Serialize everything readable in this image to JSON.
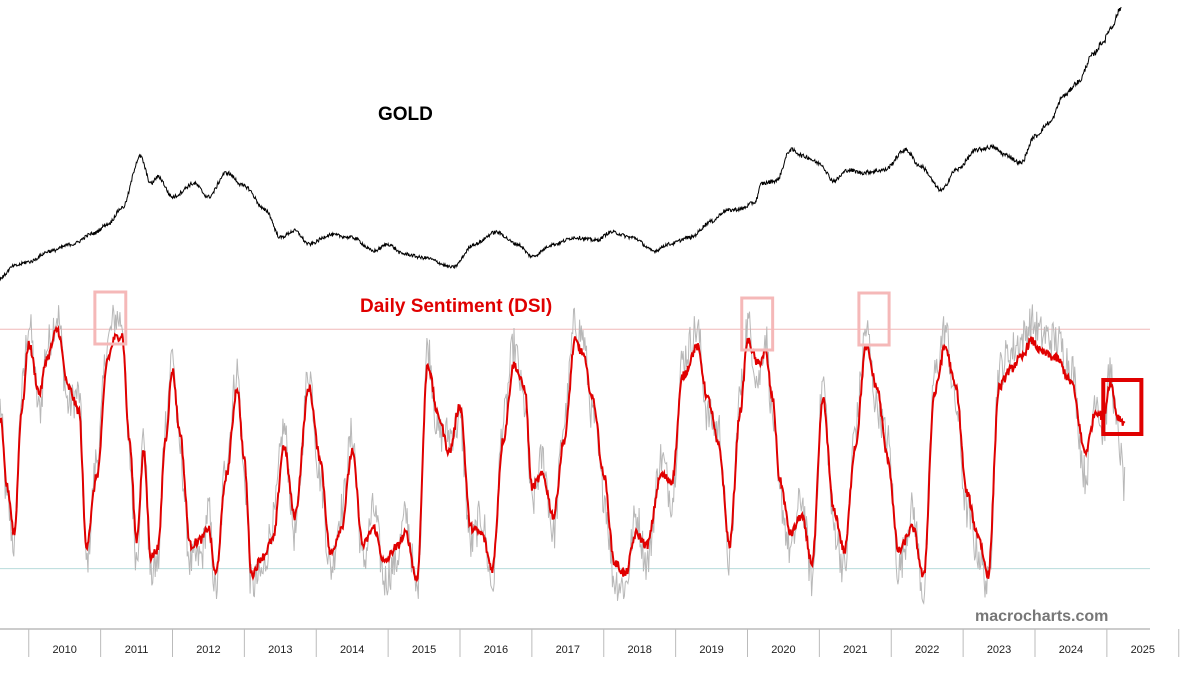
{
  "colors": {
    "gold_line": "#000000",
    "dsi_raw": "#b8b8b8",
    "dsi_smoothed": "#e00000",
    "upper_band": "#f0b8b8",
    "lower_band": "#b8dcdc",
    "highlight_faint": "#f5b8b8",
    "highlight_strong": "#e00000",
    "brand": "#777777"
  },
  "chart_data": [
    {
      "type": "line",
      "title": "GOLD",
      "series": [
        {
          "name": "GOLD",
          "x": [
            2009.6,
            2009.8,
            2010.0,
            2010.3,
            2010.6,
            2010.9,
            2011.1,
            2011.3,
            2011.55,
            2011.7,
            2011.8,
            2012.0,
            2012.3,
            2012.5,
            2012.75,
            2013.0,
            2013.3,
            2013.5,
            2013.7,
            2013.9,
            2014.2,
            2014.5,
            2014.8,
            2015.0,
            2015.2,
            2015.5,
            2015.9,
            2016.2,
            2016.5,
            2016.8,
            2017.0,
            2017.3,
            2017.6,
            2017.9,
            2018.1,
            2018.4,
            2018.7,
            2018.9,
            2019.2,
            2019.5,
            2019.7,
            2019.9,
            2020.1,
            2020.2,
            2020.4,
            2020.6,
            2020.8,
            2021.0,
            2021.2,
            2021.4,
            2021.6,
            2021.9,
            2022.2,
            2022.4,
            2022.7,
            2022.9,
            2023.2,
            2023.4,
            2023.6,
            2023.8,
            2024.0,
            2024.2,
            2024.4,
            2024.6,
            2024.8,
            2024.95,
            2025.05,
            2025.2
          ],
          "values": [
            1000,
            1090,
            1120,
            1200,
            1250,
            1330,
            1400,
            1520,
            1900,
            1700,
            1750,
            1600,
            1700,
            1600,
            1780,
            1680,
            1500,
            1300,
            1350,
            1250,
            1320,
            1300,
            1200,
            1250,
            1180,
            1150,
            1080,
            1250,
            1340,
            1250,
            1160,
            1250,
            1300,
            1280,
            1340,
            1300,
            1200,
            1250,
            1300,
            1420,
            1500,
            1510,
            1560,
            1700,
            1720,
            1950,
            1900,
            1850,
            1720,
            1800,
            1780,
            1800,
            1950,
            1830,
            1650,
            1800,
            1950,
            1970,
            1910,
            1850,
            2050,
            2150,
            2350,
            2450,
            2650,
            2750,
            2850,
            3000
          ]
        }
      ]
    },
    {
      "type": "line",
      "title": "Daily Sentiment (DSI)",
      "xlabel": "",
      "ylabel": "",
      "ylim": [
        0,
        100
      ],
      "categories": [
        "2010",
        "2011",
        "2012",
        "2013",
        "2014",
        "2015",
        "2016",
        "2017",
        "2018",
        "2019",
        "2020",
        "2021",
        "2022",
        "2023",
        "2024",
        "2025"
      ],
      "reference_lines": [
        90,
        8
      ],
      "highlights": [
        {
          "start": 2010.92,
          "end": 2011.35,
          "style": "faint"
        },
        {
          "start": 2019.92,
          "end": 2020.35,
          "style": "faint"
        },
        {
          "start": 2021.55,
          "end": 2021.97,
          "style": "faint"
        },
        {
          "start": 2024.95,
          "end": 2025.48,
          "style": "strong"
        }
      ],
      "series": [
        {
          "name": "DSI (smoothed)",
          "x": [
            2009.6,
            2009.7,
            2009.8,
            2009.9,
            2010.0,
            2010.15,
            2010.25,
            2010.4,
            2010.55,
            2010.7,
            2010.8,
            2010.95,
            2011.1,
            2011.2,
            2011.3,
            2011.4,
            2011.5,
            2011.6,
            2011.7,
            2011.8,
            2011.9,
            2012.0,
            2012.1,
            2012.25,
            2012.4,
            2012.5,
            2012.6,
            2012.75,
            2012.9,
            2013.0,
            2013.1,
            2013.25,
            2013.4,
            2013.55,
            2013.7,
            2013.9,
            2014.05,
            2014.2,
            2014.35,
            2014.5,
            2014.65,
            2014.8,
            2014.95,
            2015.1,
            2015.25,
            2015.4,
            2015.55,
            2015.7,
            2015.85,
            2016.0,
            2016.15,
            2016.3,
            2016.45,
            2016.6,
            2016.75,
            2016.9,
            2017.0,
            2017.15,
            2017.3,
            2017.45,
            2017.6,
            2017.7,
            2017.85,
            2018.0,
            2018.15,
            2018.3,
            2018.45,
            2018.6,
            2018.8,
            2018.95,
            2019.1,
            2019.3,
            2019.45,
            2019.6,
            2019.75,
            2019.9,
            2020.0,
            2020.15,
            2020.25,
            2020.35,
            2020.45,
            2020.6,
            2020.75,
            2020.9,
            2021.05,
            2021.2,
            2021.35,
            2021.5,
            2021.65,
            2021.8,
            2021.95,
            2022.1,
            2022.3,
            2022.45,
            2022.6,
            2022.75,
            2022.9,
            2023.05,
            2023.2,
            2023.35,
            2023.5,
            2023.65,
            2023.8,
            2023.95,
            2024.1,
            2024.3,
            2024.5,
            2024.7,
            2024.85,
            2024.95,
            2025.05,
            2025.15,
            2025.25
          ],
          "values": [
            60,
            36,
            20,
            62,
            85,
            68,
            80,
            90,
            70,
            62,
            16,
            40,
            80,
            87,
            88,
            52,
            18,
            48,
            12,
            15,
            52,
            76,
            55,
            16,
            18,
            22,
            6,
            40,
            70,
            45,
            6,
            12,
            18,
            50,
            26,
            70,
            46,
            13,
            22,
            48,
            16,
            22,
            10,
            15,
            20,
            4,
            78,
            60,
            48,
            64,
            22,
            20,
            8,
            52,
            78,
            70,
            36,
            40,
            26,
            52,
            86,
            82,
            66,
            40,
            10,
            6,
            20,
            16,
            40,
            38,
            74,
            84,
            66,
            50,
            16,
            62,
            86,
            78,
            82,
            66,
            38,
            20,
            26,
            10,
            66,
            28,
            14,
            50,
            84,
            70,
            46,
            14,
            22,
            5,
            68,
            84,
            70,
            34,
            20,
            6,
            70,
            76,
            80,
            86,
            82,
            80,
            72,
            48,
            62,
            60,
            72,
            60,
            58
          ]
        },
        {
          "name": "DSI (raw)",
          "x": [
            2009.6,
            2009.7,
            2009.8,
            2009.9,
            2010.0,
            2010.15,
            2010.25,
            2010.4,
            2010.55,
            2010.7,
            2010.8,
            2010.95,
            2011.1,
            2011.2,
            2011.3,
            2011.4,
            2011.5,
            2011.6,
            2011.7,
            2011.8,
            2011.9,
            2012.0,
            2012.1,
            2012.25,
            2012.4,
            2012.5,
            2012.6,
            2012.75,
            2012.9,
            2013.0,
            2013.1,
            2013.25,
            2013.4,
            2013.55,
            2013.7,
            2013.9,
            2014.05,
            2014.2,
            2014.35,
            2014.5,
            2014.65,
            2014.8,
            2014.95,
            2015.1,
            2015.25,
            2015.4,
            2015.55,
            2015.7,
            2015.85,
            2016.0,
            2016.15,
            2016.3,
            2016.45,
            2016.6,
            2016.75,
            2016.9,
            2017.0,
            2017.15,
            2017.3,
            2017.45,
            2017.6,
            2017.7,
            2017.85,
            2018.0,
            2018.15,
            2018.3,
            2018.45,
            2018.6,
            2018.8,
            2018.95,
            2019.1,
            2019.3,
            2019.45,
            2019.6,
            2019.75,
            2019.9,
            2020.0,
            2020.15,
            2020.25,
            2020.35,
            2020.45,
            2020.6,
            2020.75,
            2020.9,
            2021.05,
            2021.2,
            2021.35,
            2021.5,
            2021.65,
            2021.8,
            2021.95,
            2022.1,
            2022.3,
            2022.45,
            2022.6,
            2022.75,
            2022.9,
            2023.05,
            2023.2,
            2023.35,
            2023.5,
            2023.65,
            2023.8,
            2023.95,
            2024.1,
            2024.3,
            2024.5,
            2024.7,
            2024.85,
            2024.95,
            2025.05,
            2025.15,
            2025.25
          ],
          "values": [
            64,
            30,
            16,
            68,
            92,
            62,
            84,
            95,
            64,
            68,
            10,
            46,
            86,
            94,
            93,
            46,
            12,
            54,
            6,
            10,
            58,
            82,
            49,
            10,
            12,
            28,
            0,
            46,
            76,
            39,
            2,
            6,
            24,
            56,
            20,
            76,
            40,
            8,
            28,
            54,
            10,
            28,
            4,
            10,
            26,
            0,
            84,
            54,
            54,
            58,
            16,
            26,
            2,
            58,
            84,
            64,
            30,
            46,
            20,
            58,
            92,
            88,
            60,
            34,
            4,
            2,
            26,
            10,
            46,
            32,
            80,
            90,
            60,
            56,
            10,
            68,
            92,
            72,
            88,
            60,
            32,
            14,
            32,
            4,
            72,
            22,
            8,
            56,
            90,
            64,
            52,
            8,
            28,
            0,
            74,
            90,
            64,
            28,
            14,
            2,
            76,
            82,
            86,
            92,
            88,
            86,
            78,
            40,
            68,
            54,
            76,
            54,
            36
          ]
        }
      ]
    }
  ],
  "labels": {
    "gold_title": "GOLD",
    "dsi_title": "Daily Sentiment (DSI)",
    "brand": "macrocharts.com"
  }
}
